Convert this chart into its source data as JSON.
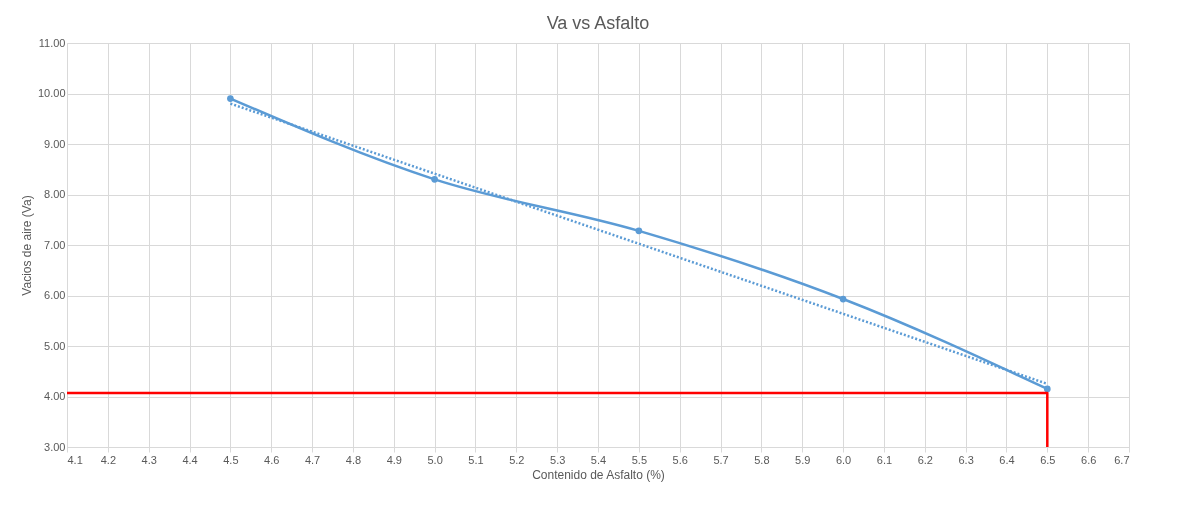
{
  "chart_data": {
    "type": "line",
    "title": "Va vs Asfalto",
    "xlabel": "Contenido de Asfalto (%)",
    "ylabel": "Vacios de aire (Va)",
    "xlim": [
      4.1,
      6.7
    ],
    "xticks": [
      4.1,
      4.2,
      4.3,
      4.4,
      4.5,
      4.6,
      4.7,
      4.8,
      4.9,
      {
        "value": 5,
        "label": "5.0"
      },
      5.1,
      5.2,
      5.3,
      5.4,
      5.5,
      5.6,
      5.7,
      5.8,
      5.9,
      {
        "value": 6,
        "label": "6.0"
      },
      6.1,
      6.2,
      6.3,
      6.4,
      6.5,
      6.6,
      6.7
    ],
    "ylim": [
      3,
      11
    ],
    "yticks": [
      {
        "value": 3,
        "label": "3.00"
      },
      {
        "value": 4,
        "label": "4.00"
      },
      {
        "value": 5,
        "label": "5.00"
      },
      {
        "value": 6,
        "label": "6.00"
      },
      {
        "value": 7,
        "label": "7.00"
      },
      {
        "value": 8,
        "label": "8.00"
      },
      {
        "value": 9,
        "label": "9.00"
      },
      {
        "value": 10,
        "label": "10.00"
      },
      {
        "value": 11,
        "label": "11.00"
      }
    ],
    "grid": true,
    "series": [
      {
        "color": "#5b9bd5",
        "x": [
          4.5,
          5.0,
          5.5,
          6.0,
          6.5
        ],
        "values": [
          9.9,
          8.3,
          7.28,
          5.93,
          4.15
        ],
        "marker": "circle",
        "line_style": "solid"
      },
      {
        "color": "#5b9bd5",
        "x": [
          4.5,
          6.5
        ],
        "values": [
          9.8,
          4.25
        ],
        "marker": "none",
        "line_style": "dotted"
      },
      {
        "color": "#ff0000",
        "x": [
          4.1,
          6.5,
          6.5
        ],
        "values": [
          4.07,
          4.07,
          3
        ],
        "marker": "none",
        "line_style": "solid"
      }
    ]
  }
}
